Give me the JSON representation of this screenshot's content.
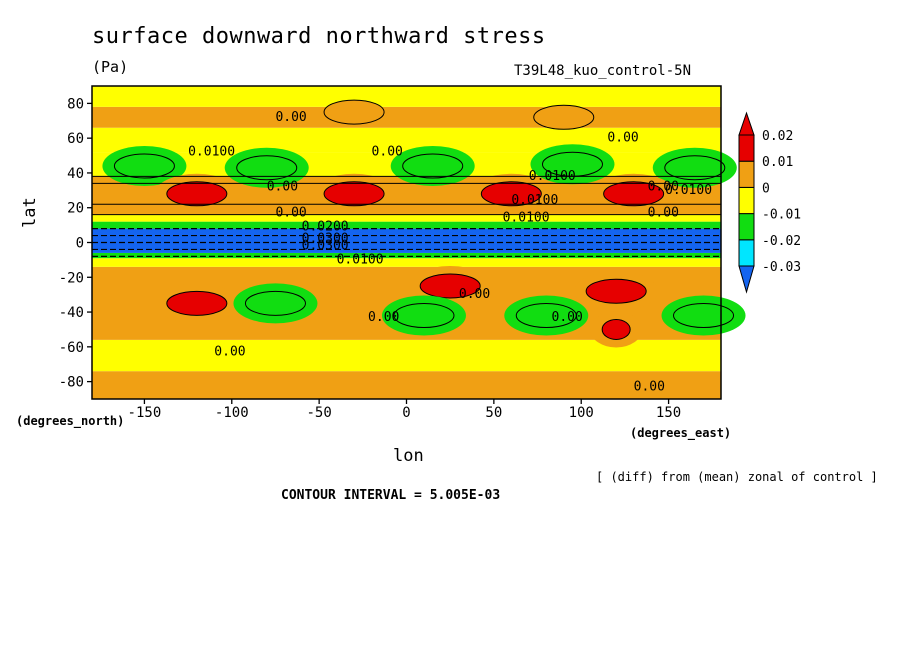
{
  "chart_data": {
    "type": "heatmap",
    "title": "surface downward northward stress",
    "units": "(Pa)",
    "run_label": "T39L48_kuo_control-5N",
    "xlabel": "lon",
    "ylabel": "lat",
    "x_units": "(degrees_east)",
    "y_units": "(degrees_north)",
    "xlim": [
      -180,
      180
    ],
    "ylim": [
      -90,
      90
    ],
    "x_ticks": [
      -150,
      -100,
      -50,
      0,
      50,
      100,
      150
    ],
    "x_tick_labels": [
      "-150",
      "-100",
      "-50",
      "0",
      "50",
      "100",
      "150"
    ],
    "y_ticks": [
      -80,
      -60,
      -40,
      -20,
      0,
      20,
      40,
      60,
      80
    ],
    "y_tick_labels": [
      "-80",
      "-60",
      "-40",
      "-20",
      "0",
      "20",
      "40",
      "60",
      "80"
    ],
    "colorbar": {
      "levels": [
        -0.03,
        -0.02,
        -0.01,
        0,
        0.01,
        0.02
      ],
      "labels": [
        "-0.03",
        "-0.02",
        "-0.01",
        "0",
        "0.01",
        "0.02"
      ],
      "colors": [
        "#1464f0",
        "#00e6ff",
        "#11dd11",
        "#ffff00",
        "#f0a014",
        "#e60000"
      ],
      "under_color": "#1464f0",
      "over_color": "#e60000"
    },
    "bands": [
      {
        "lat": [
          -90,
          -74
        ],
        "value": 0.003
      },
      {
        "lat": [
          -74,
          -56
        ],
        "value": -0.004
      },
      {
        "lat": [
          -56,
          -14
        ],
        "value": 0.003
      },
      {
        "lat": [
          -14,
          -9
        ],
        "value": -0.006
      },
      {
        "lat": [
          -9,
          -6
        ],
        "value": -0.016
      },
      {
        "lat": [
          -6,
          8
        ],
        "value": -0.035
      },
      {
        "lat": [
          8,
          12
        ],
        "value": -0.016
      },
      {
        "lat": [
          12,
          16
        ],
        "value": -0.006
      },
      {
        "lat": [
          16,
          22
        ],
        "value": 0.004
      },
      {
        "lat": [
          22,
          34
        ],
        "value": 0.006
      },
      {
        "lat": [
          34,
          38
        ],
        "value": 0.002
      },
      {
        "lat": [
          38,
          52
        ],
        "value": -0.008
      },
      {
        "lat": [
          52,
          66
        ],
        "value": -0.004
      },
      {
        "lat": [
          66,
          78
        ],
        "value": 0.003
      },
      {
        "lat": [
          78,
          90
        ],
        "value": -0.003
      }
    ],
    "features": [
      {
        "lon": -150,
        "lat": 44,
        "value": -0.013
      },
      {
        "lon": -80,
        "lat": 43,
        "value": -0.013
      },
      {
        "lon": 15,
        "lat": 44,
        "value": -0.013
      },
      {
        "lon": 95,
        "lat": 45,
        "value": -0.013
      },
      {
        "lon": 165,
        "lat": 43,
        "value": -0.012
      },
      {
        "lon": -120,
        "lat": 28,
        "value": 0.012
      },
      {
        "lon": -30,
        "lat": 28,
        "value": 0.012
      },
      {
        "lon": 60,
        "lat": 28,
        "value": 0.012
      },
      {
        "lon": 130,
        "lat": 28,
        "value": 0.012
      },
      {
        "lon": -120,
        "lat": -35,
        "value": 0.013
      },
      {
        "lon": 25,
        "lat": -25,
        "value": 0.012
      },
      {
        "lon": 120,
        "lat": -50,
        "value": 0.022
      },
      {
        "lon": 120,
        "lat": -28,
        "value": 0.012
      },
      {
        "lon": -75,
        "lat": -35,
        "value": -0.012
      },
      {
        "lon": 10,
        "lat": -42,
        "value": -0.012
      },
      {
        "lon": 80,
        "lat": -42,
        "value": -0.012
      },
      {
        "lon": 170,
        "lat": -42,
        "value": -0.012
      },
      {
        "lon": -30,
        "lat": 75,
        "value": 0.004
      },
      {
        "lon": 90,
        "lat": 72,
        "value": 0.004
      }
    ],
    "contour_labels": [
      {
        "text": "0.00",
        "lon": -75,
        "lat": 70
      },
      {
        "text": "0.00",
        "lon": 115,
        "lat": 58
      },
      {
        "text": "0.0100",
        "lon": -125,
        "lat": 50
      },
      {
        "text": "0.00",
        "lon": -20,
        "lat": 50
      },
      {
        "text": "0.0100",
        "lon": 70,
        "lat": 36
      },
      {
        "text": "0.0100",
        "lon": 60,
        "lat": 22
      },
      {
        "text": "0.00",
        "lon": -80,
        "lat": 30
      },
      {
        "text": "0.00",
        "lon": 138,
        "lat": 30
      },
      {
        "text": "0.0100",
        "lon": 148,
        "lat": 28
      },
      {
        "text": "0.00",
        "lon": -75,
        "lat": 15
      },
      {
        "text": "0.0100",
        "lon": 55,
        "lat": 12
      },
      {
        "text": "0.00",
        "lon": 138,
        "lat": 15
      },
      {
        "text": "0.0200",
        "lon": -60,
        "lat": 7
      },
      {
        "text": "0.0300",
        "lon": -60,
        "lat": 0
      },
      {
        "text": "0.0300",
        "lon": -60,
        "lat": -4
      },
      {
        "text": "0.0100",
        "lon": -40,
        "lat": -12
      },
      {
        "text": "0.00",
        "lon": 30,
        "lat": -32
      },
      {
        "text": "0.00",
        "lon": -22,
        "lat": -45
      },
      {
        "text": "0.00",
        "lon": 83,
        "lat": -45
      },
      {
        "text": "0.00",
        "lon": -110,
        "lat": -65
      },
      {
        "text": "0.00",
        "lon": 130,
        "lat": -85
      }
    ]
  },
  "footer": {
    "note": "[ (diff) from (mean) zonal of control ]",
    "interval": "CONTOUR INTERVAL = 5.005E-03"
  }
}
